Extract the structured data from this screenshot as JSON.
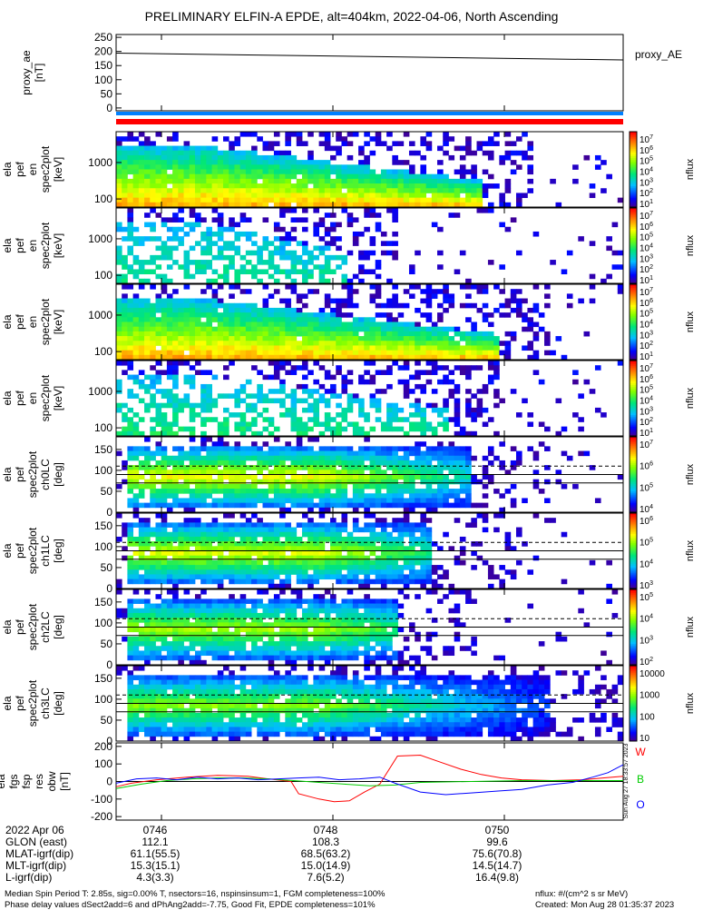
{
  "title": "PRELIMINARY ELFIN-A EPDE, alt=404km, 2022-04-06, North Ascending",
  "chart_data": [
    {
      "type": "line",
      "ylabel": "proxy_ae [nT]",
      "legend": "proxy_AE",
      "yticks": [
        "250",
        "200",
        "150",
        "100",
        "50",
        "0"
      ],
      "ylim": [
        -10,
        260
      ],
      "series": [
        {
          "name": "proxy_AE",
          "x": [
            "07:44:38",
            "07:51:51"
          ],
          "y": [
            194,
            170
          ]
        }
      ]
    },
    {
      "type": "heatmap",
      "ylabel": "ela pef en spec2plot [keV]",
      "yticks": [
        "1000",
        "100"
      ],
      "ylim": [
        60,
        7000
      ],
      "yscale": "log",
      "colorbar": {
        "label": "nflux",
        "ticks": [
          "10^7",
          "10^6",
          "10^5",
          "10^4",
          "10^3",
          "10^2",
          "10^1"
        ]
      }
    },
    {
      "type": "heatmap",
      "ylabel": "ela pef en spec2plot [keV]",
      "yticks": [
        "1000",
        "100"
      ],
      "ylim": [
        60,
        7000
      ],
      "yscale": "log",
      "colorbar": {
        "label": "nflux",
        "ticks": [
          "10^7",
          "10^6",
          "10^5",
          "10^4",
          "10^3",
          "10^2",
          "10^1"
        ]
      }
    },
    {
      "type": "heatmap",
      "ylabel": "ela pef en spec2plot [keV]",
      "yticks": [
        "1000",
        "100"
      ],
      "ylim": [
        60,
        7000
      ],
      "yscale": "log",
      "colorbar": {
        "label": "nflux",
        "ticks": [
          "10^7",
          "10^6",
          "10^5",
          "10^4",
          "10^3",
          "10^2",
          "10^1"
        ]
      }
    },
    {
      "type": "heatmap",
      "ylabel": "ela pef en spec2plot [keV]",
      "yticks": [
        "1000",
        "100"
      ],
      "ylim": [
        60,
        7000
      ],
      "yscale": "log",
      "colorbar": {
        "label": "nflux",
        "ticks": [
          "10^7",
          "10^6",
          "10^5",
          "10^4",
          "10^3",
          "10^2",
          "10^1"
        ]
      }
    },
    {
      "type": "heatmap",
      "ylabel": "ela pef spec2plot ch0LC [deg]",
      "yticks": [
        "150",
        "100",
        "50",
        "0"
      ],
      "ylim": [
        0,
        180
      ],
      "colorbar": {
        "label": "nflux",
        "ticks": [
          "10^7",
          "10^6",
          "10^5",
          "10^4"
        ]
      }
    },
    {
      "type": "heatmap",
      "ylabel": "ela pef spec2plot ch1LC [deg]",
      "yticks": [
        "150",
        "100",
        "50",
        "0"
      ],
      "ylim": [
        0,
        180
      ],
      "colorbar": {
        "label": "nflux",
        "ticks": [
          "10^6",
          "10^5",
          "10^4",
          "10^3"
        ]
      }
    },
    {
      "type": "heatmap",
      "ylabel": "ela pef spec2plot ch2LC [deg]",
      "yticks": [
        "150",
        "100",
        "50",
        "0"
      ],
      "ylim": [
        0,
        180
      ],
      "colorbar": {
        "label": "nflux",
        "ticks": [
          "10^5",
          "10^4",
          "10^3",
          "10^2"
        ]
      }
    },
    {
      "type": "heatmap",
      "ylabel": "ela pef spec2plot ch3LC [deg]",
      "yticks": [
        "150",
        "100",
        "50",
        "0"
      ],
      "ylim": [
        0,
        180
      ],
      "colorbar": {
        "label": "nflux",
        "ticks": [
          "10000",
          "1000",
          "100",
          "10"
        ]
      }
    },
    {
      "type": "line",
      "ylabel": "ela fgs fsp res obw [nT]",
      "yticks": [
        "200",
        "100",
        "0",
        "-100",
        "-200"
      ],
      "ylim": [
        -220,
        220
      ],
      "legend": [
        "W",
        "B",
        "O"
      ],
      "series": [
        {
          "name": "W",
          "color": "#ff0000",
          "x": [
            0,
            0.03,
            0.08,
            0.14,
            0.2,
            0.26,
            0.3,
            0.345,
            0.36,
            0.4,
            0.43,
            0.46,
            0.49,
            0.52,
            0.555,
            0.6,
            0.64,
            0.68,
            0.72,
            0.76,
            0.8,
            0.86,
            0.92,
            0.96,
            1.0
          ],
          "y": [
            -30,
            -10,
            10,
            25,
            35,
            30,
            15,
            0,
            -70,
            -100,
            -115,
            -110,
            -60,
            -15,
            145,
            150,
            110,
            70,
            40,
            20,
            10,
            5,
            10,
            20,
            30
          ]
        },
        {
          "name": "B",
          "color": "#00cc00",
          "x": [
            0,
            0.05,
            0.1,
            0.15,
            0.2,
            0.25,
            0.3,
            0.35,
            0.4,
            0.45,
            0.5,
            0.55,
            0.6,
            0.7,
            0.8,
            0.9,
            1.0
          ],
          "y": [
            -40,
            -15,
            5,
            15,
            20,
            20,
            15,
            5,
            -5,
            -15,
            -25,
            -20,
            -5,
            0,
            5,
            5,
            5
          ]
        },
        {
          "name": "O",
          "color": "#0000ff",
          "x": [
            0,
            0.04,
            0.08,
            0.12,
            0.16,
            0.2,
            0.24,
            0.28,
            0.32,
            0.36,
            0.4,
            0.44,
            0.48,
            0.52,
            0.55,
            0.6,
            0.65,
            0.7,
            0.75,
            0.8,
            0.85,
            0.9,
            0.94,
            0.97,
            1.0
          ],
          "y": [
            -10,
            15,
            20,
            10,
            25,
            15,
            20,
            10,
            15,
            20,
            25,
            10,
            15,
            25,
            -10,
            -60,
            -75,
            -65,
            -55,
            -45,
            -20,
            -5,
            25,
            50,
            95
          ]
        }
      ]
    }
  ],
  "time_ticks": [
    "0746",
    "0748",
    "0750"
  ],
  "footer": {
    "date_label": "2022 Apr 06",
    "rows": [
      {
        "label": "GLON (east)",
        "values": [
          "112.1",
          "108.3",
          "99.6"
        ]
      },
      {
        "label": "MLAT-igrf(dip)",
        "values": [
          "61.1(55.5)",
          "68.5(63.2)",
          "75.6(70.8)"
        ]
      },
      {
        "label": "MLT-igrf(dip)",
        "values": [
          "15.3(15.1)",
          "15.0(14.9)",
          "14.5(14.7)"
        ]
      },
      {
        "label": "L-igrf(dip)",
        "values": [
          "4.3(3.3)",
          "7.6(5.2)",
          "16.4(9.8)"
        ]
      }
    ],
    "note_line1": "Median Spin Period T: 2.85s, sig=0.00% T, nsectors=16, nspinsinsum=1, FGM completeness=100%",
    "note_line2": "Phase delay values dSect2add=6 and dPhAng2add=-7.75, Good Fit, EPDE completeness=101%",
    "flux_units": "nflux: #/(cm^2 s sr MeV)",
    "created": "Created: Mon Aug 28 01:35:37 2023",
    "side_stamp": "Sun Aug 27 18:33:57 2023"
  },
  "colors": {
    "bar_blue": "#0080ff",
    "bar_red": "#ff0000",
    "trace_w": "#ff0000",
    "trace_b": "#00cc00",
    "trace_o": "#0000ff"
  }
}
